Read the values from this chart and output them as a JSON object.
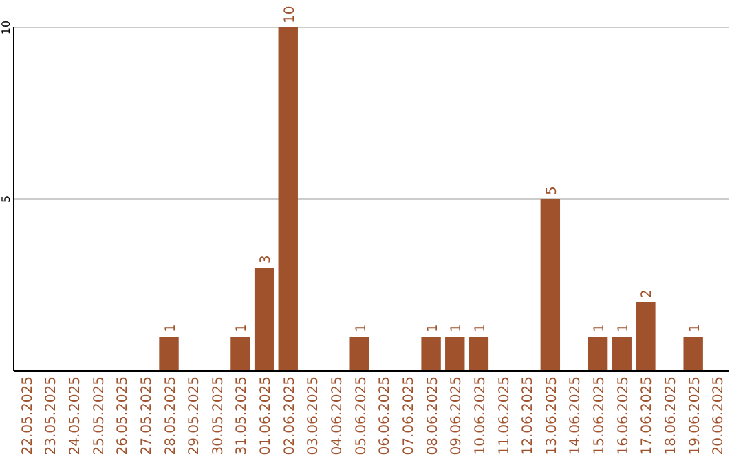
{
  "chart_data": {
    "type": "bar",
    "categories": [
      "22.05.2025",
      "23.05.2025",
      "24.05.2025",
      "25.05.2025",
      "26.05.2025",
      "27.05.2025",
      "28.05.2025",
      "29.05.2025",
      "30.05.2025",
      "31.05.2025",
      "01.06.2025",
      "02.06.2025",
      "03.06.2025",
      "04.06.2025",
      "05.06.2025",
      "06.06.2025",
      "07.06.2025",
      "08.06.2025",
      "09.06.2025",
      "10.06.2025",
      "11.06.2025",
      "12.06.2025",
      "13.06.2025",
      "14.06.2025",
      "15.06.2025",
      "16.06.2025",
      "17.06.2025",
      "18.06.2025",
      "19.06.2025",
      "20.06.2025"
    ],
    "values": [
      0,
      0,
      0,
      0,
      0,
      0,
      1,
      0,
      0,
      1,
      3,
      10,
      0,
      0,
      1,
      0,
      0,
      1,
      1,
      1,
      0,
      0,
      5,
      0,
      1,
      1,
      2,
      0,
      1,
      0
    ],
    "value_labels": [
      null,
      null,
      null,
      null,
      null,
      null,
      "1",
      null,
      null,
      "1",
      "3",
      "10",
      null,
      null,
      "1",
      null,
      null,
      "1",
      "1",
      "1",
      null,
      null,
      "5",
      null,
      "1",
      "1",
      "2",
      null,
      "1",
      null
    ],
    "color": "#a0522d",
    "ylim": [
      0,
      10
    ],
    "yticks": [
      5,
      10
    ],
    "grid": "y"
  }
}
